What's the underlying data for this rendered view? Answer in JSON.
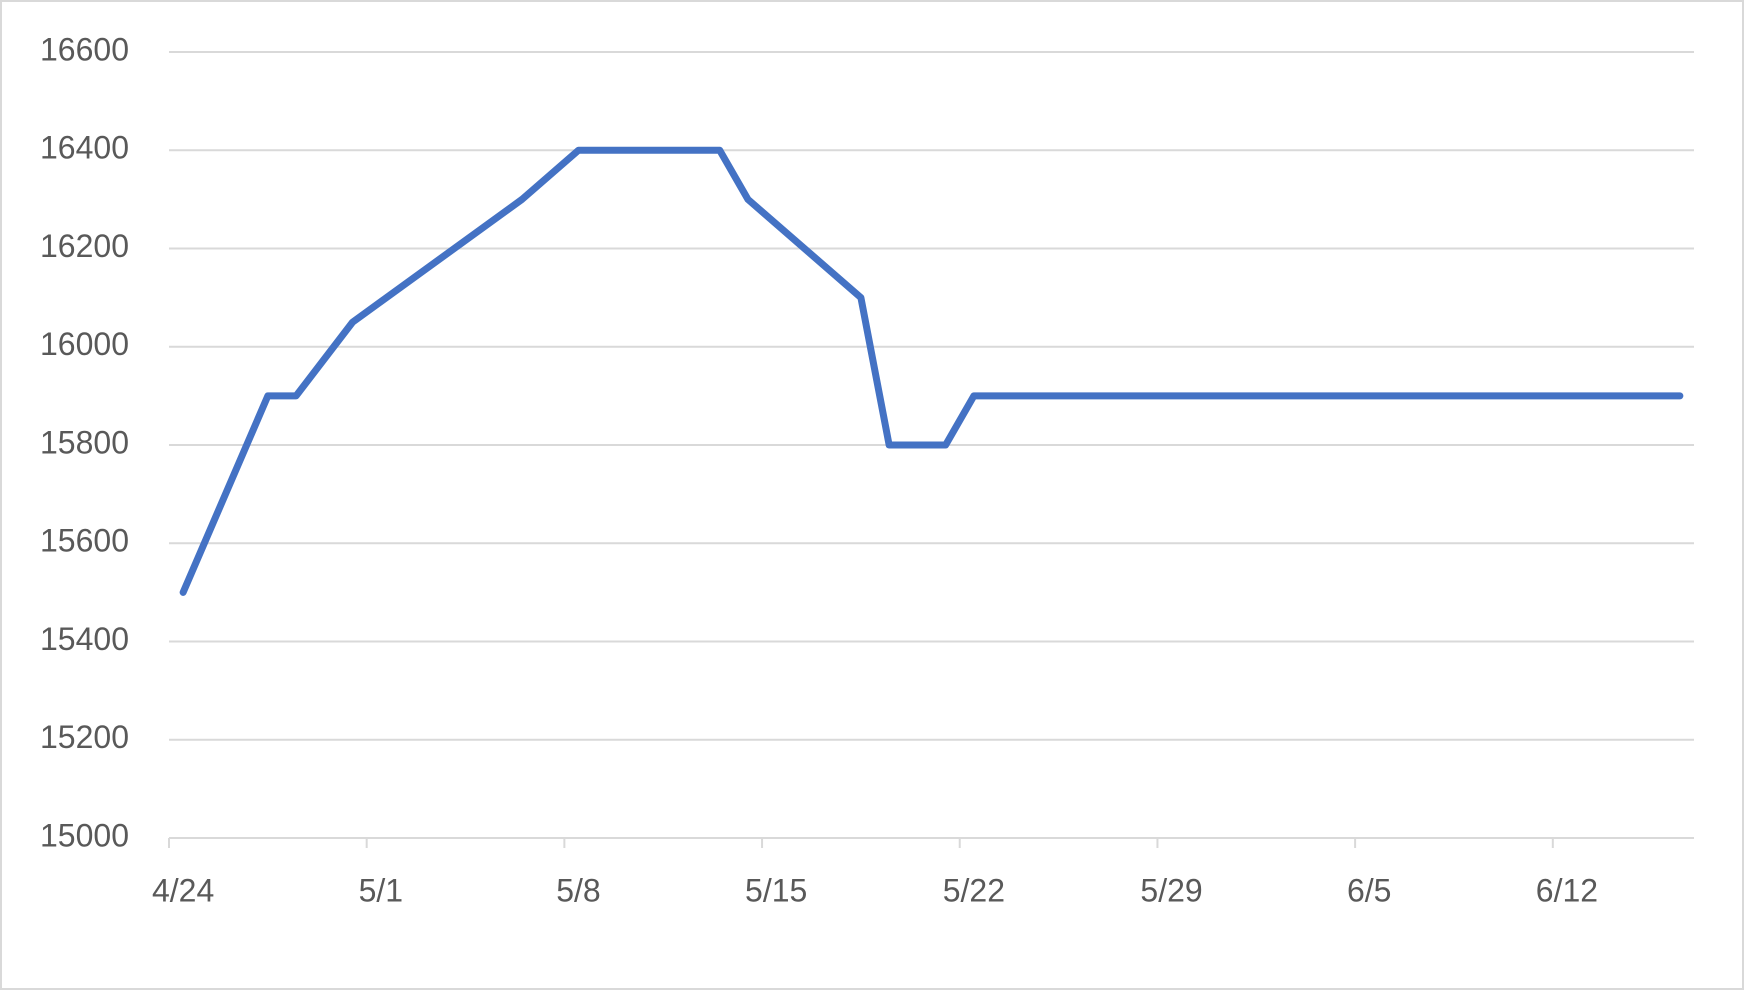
{
  "chart_data": {
    "type": "line",
    "x": [
      "4/24",
      "4/27",
      "4/28",
      "4/30",
      "5/6",
      "5/8",
      "5/13",
      "5/14",
      "5/18",
      "5/19",
      "5/21",
      "5/22",
      "6/16"
    ],
    "series": [
      {
        "color": "#4472c4",
        "values": [
          15500,
          15900,
          15900,
          16050,
          16300,
          16400,
          16400,
          16300,
          16100,
          15800,
          15800,
          15900,
          15900
        ]
      }
    ],
    "xlim": [
      "4/24",
      "6/17"
    ],
    "xticks": [
      "4/24",
      "5/1",
      "5/8",
      "5/15",
      "5/22",
      "5/29",
      "6/5",
      "6/12"
    ],
    "ylim": [
      15000,
      16600
    ],
    "yticks": [
      15000,
      15200,
      15400,
      15600,
      15800,
      16000,
      16200,
      16400,
      16600
    ],
    "grid": true
  }
}
